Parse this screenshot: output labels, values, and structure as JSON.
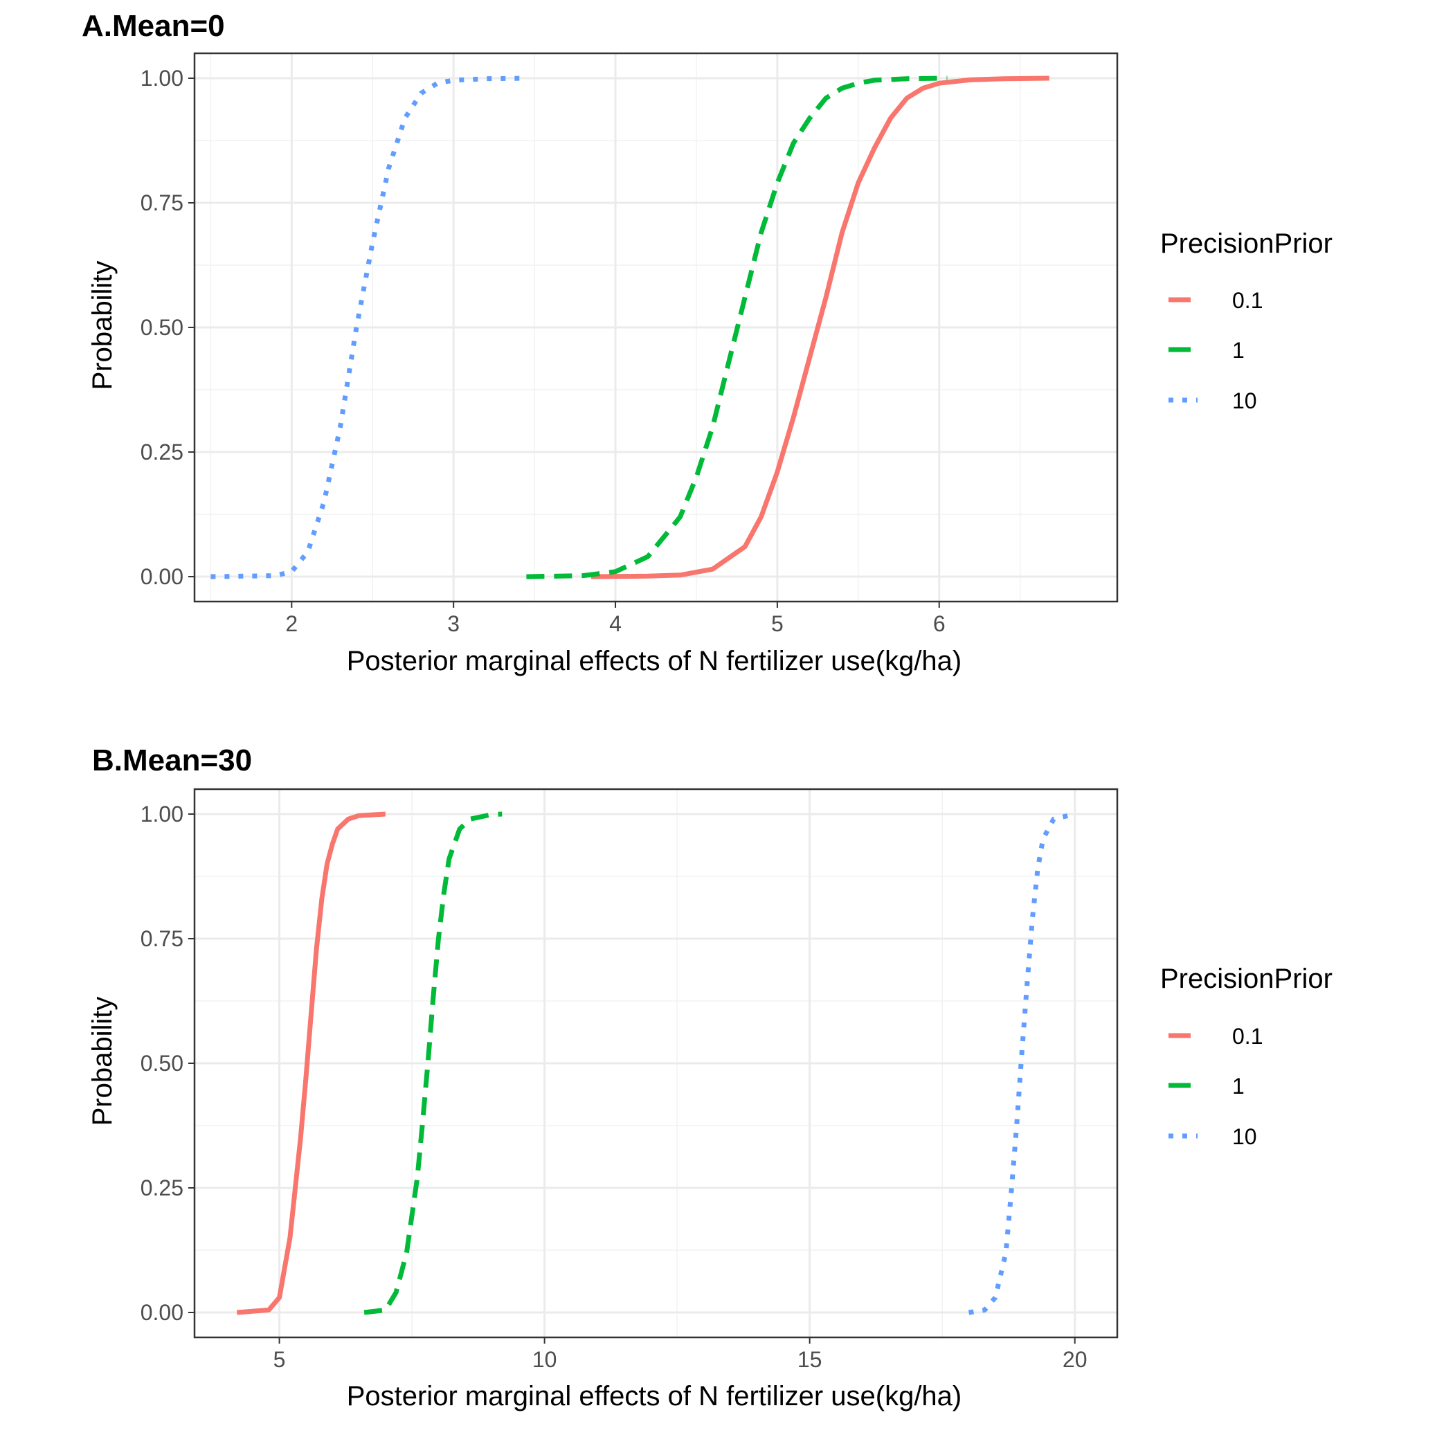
{
  "chart_data": [
    {
      "type": "line",
      "title": "A.Mean=0",
      "xlabel": "Posterior marginal effects of N fertilizer use(kg/ha)",
      "ylabel": "Probability",
      "xlim": [
        1.4,
        7.1
      ],
      "ylim": [
        -0.05,
        1.05
      ],
      "x_ticks": [
        2,
        3,
        4,
        5,
        6
      ],
      "x_tick_labels": [
        "2",
        "3",
        "4",
        "5",
        "6"
      ],
      "y_ticks": [
        0,
        0.25,
        0.5,
        0.75,
        1
      ],
      "y_tick_labels": [
        "0.00",
        "0.25",
        "0.50",
        "0.75",
        "1.00"
      ],
      "grid": true,
      "legend": {
        "title": "PrecisionPrior",
        "position": "right"
      },
      "series": [
        {
          "name": "0.1",
          "color": "#F8766D",
          "linestyle": "solid",
          "x": [
            3.85,
            4.2,
            4.4,
            4.6,
            4.8,
            4.9,
            5.0,
            5.1,
            5.2,
            5.3,
            5.4,
            5.5,
            5.6,
            5.7,
            5.8,
            5.9,
            6.0,
            6.2,
            6.4,
            6.68
          ],
          "y": [
            0,
            0.001,
            0.003,
            0.015,
            0.06,
            0.12,
            0.21,
            0.32,
            0.44,
            0.56,
            0.69,
            0.79,
            0.86,
            0.92,
            0.96,
            0.98,
            0.99,
            0.997,
            0.999,
            1
          ]
        },
        {
          "name": "1",
          "color": "#00BA38",
          "linestyle": "dashed",
          "x": [
            3.45,
            3.8,
            4.0,
            4.2,
            4.4,
            4.5,
            4.6,
            4.7,
            4.8,
            4.9,
            5.0,
            5.1,
            5.2,
            5.3,
            5.4,
            5.5,
            5.6,
            5.8,
            6.05
          ],
          "y": [
            0,
            0.002,
            0.01,
            0.04,
            0.12,
            0.2,
            0.3,
            0.43,
            0.56,
            0.69,
            0.79,
            0.87,
            0.92,
            0.96,
            0.98,
            0.99,
            0.996,
            0.999,
            1
          ]
        },
        {
          "name": "10",
          "color": "#619CFF",
          "linestyle": "dotted",
          "x": [
            1.5,
            1.9,
            2.0,
            2.1,
            2.2,
            2.3,
            2.4,
            2.5,
            2.6,
            2.7,
            2.8,
            2.9,
            3.0,
            3.2,
            3.45
          ],
          "y": [
            0,
            0.002,
            0.01,
            0.05,
            0.15,
            0.3,
            0.5,
            0.67,
            0.82,
            0.92,
            0.97,
            0.99,
            0.996,
            0.999,
            1
          ]
        }
      ]
    },
    {
      "type": "line",
      "title": "B.Mean=30",
      "xlabel": "Posterior marginal effects of N fertilizer use(kg/ha)",
      "ylabel": "Probability",
      "xlim": [
        3.4,
        20.8
      ],
      "ylim": [
        -0.05,
        1.05
      ],
      "x_ticks": [
        5,
        10,
        15,
        20
      ],
      "x_tick_labels": [
        "5",
        "10",
        "15",
        "20"
      ],
      "y_ticks": [
        0,
        0.25,
        0.5,
        0.75,
        1
      ],
      "y_tick_labels": [
        "0.00",
        "0.25",
        "0.50",
        "0.75",
        "1.00"
      ],
      "grid": true,
      "legend": {
        "title": "PrecisionPrior",
        "position": "right"
      },
      "series": [
        {
          "name": "0.1",
          "color": "#F8766D",
          "linestyle": "solid",
          "x": [
            4.2,
            4.8,
            5.0,
            5.2,
            5.4,
            5.5,
            5.6,
            5.7,
            5.8,
            5.9,
            6.0,
            6.1,
            6.3,
            6.5,
            7.0
          ],
          "y": [
            0,
            0.005,
            0.03,
            0.15,
            0.35,
            0.47,
            0.6,
            0.73,
            0.83,
            0.9,
            0.94,
            0.97,
            0.99,
            0.997,
            1
          ]
        },
        {
          "name": "1",
          "color": "#00BA38",
          "linestyle": "dashed",
          "x": [
            6.6,
            7.0,
            7.2,
            7.4,
            7.6,
            7.7,
            7.8,
            7.9,
            8.0,
            8.1,
            8.2,
            8.4,
            8.6,
            9.0,
            9.2
          ],
          "y": [
            0,
            0.005,
            0.04,
            0.12,
            0.27,
            0.38,
            0.5,
            0.63,
            0.75,
            0.84,
            0.91,
            0.97,
            0.99,
            0.999,
            1
          ]
        },
        {
          "name": "10",
          "color": "#619CFF",
          "linestyle": "dotted",
          "x": [
            18.0,
            18.3,
            18.5,
            18.7,
            18.8,
            18.9,
            19.0,
            19.1,
            19.2,
            19.3,
            19.4,
            19.6,
            20.0
          ],
          "y": [
            0,
            0.005,
            0.03,
            0.12,
            0.24,
            0.37,
            0.52,
            0.66,
            0.79,
            0.89,
            0.95,
            0.99,
            1
          ]
        }
      ]
    }
  ]
}
